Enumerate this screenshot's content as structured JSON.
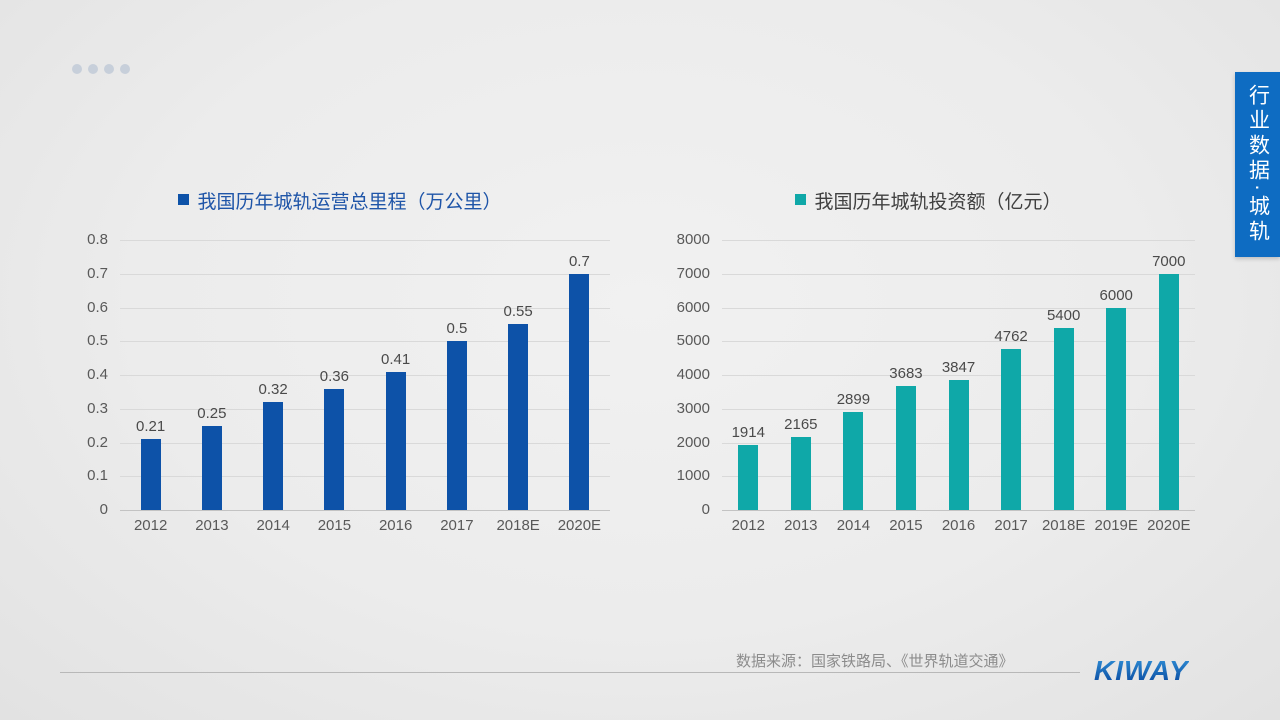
{
  "pagination": {
    "dot_count": 4,
    "dot_color": "#c7cfda"
  },
  "side_tab": {
    "label": "行业数据·城轨",
    "color": "#0e6cc2"
  },
  "footer": {
    "source": "数据来源：国家铁路局、《世界轨道交通》",
    "logo": "KIWAY",
    "logo_color": "#1261b4"
  },
  "chart_data": [
    {
      "type": "bar",
      "title": "我国历年城轨运营总里程（万公里）",
      "categories": [
        "2012",
        "2013",
        "2014",
        "2015",
        "2016",
        "2017",
        "2018E",
        "2020E"
      ],
      "values": [
        0.21,
        0.25,
        0.32,
        0.36,
        0.41,
        0.5,
        0.55,
        0.7
      ],
      "xlabel": "",
      "ylabel": "",
      "ylim": [
        0,
        0.8
      ],
      "ytick_step": 0.1,
      "grid": true,
      "legend_position": "top",
      "bar_color": "#0d52a8",
      "title_color": "#1f55a8"
    },
    {
      "type": "bar",
      "title": "我国历年城轨投资额（亿元）",
      "categories": [
        "2012",
        "2013",
        "2014",
        "2015",
        "2016",
        "2017",
        "2018E",
        "2019E",
        "2020E"
      ],
      "values": [
        1914,
        2165,
        2899,
        3683,
        3847,
        4762,
        5400,
        6000,
        7000
      ],
      "xlabel": "",
      "ylabel": "",
      "ylim": [
        0,
        8000
      ],
      "ytick_step": 1000,
      "grid": true,
      "legend_position": "top",
      "bar_color": "#0fa8a8",
      "title_color": "#404040"
    }
  ]
}
